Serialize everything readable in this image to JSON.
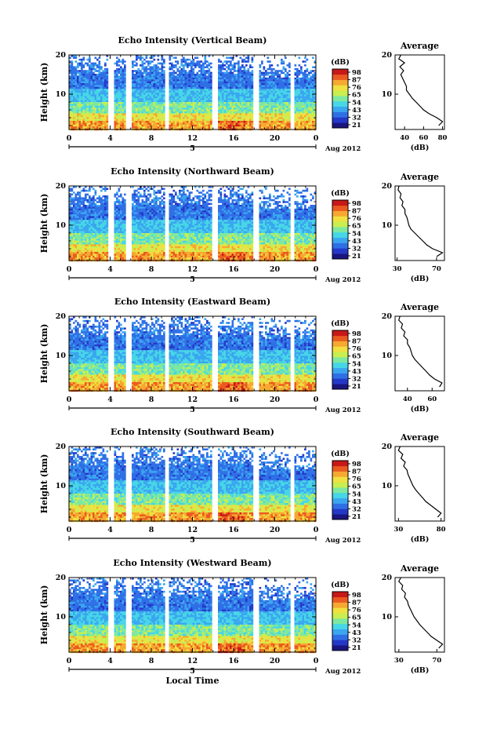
{
  "chart_data": [
    {
      "type": "heatmap",
      "title": "Echo Intensity (Vertical Beam)",
      "ylabel": "Height (km)",
      "yticks": [
        "20",
        "10"
      ],
      "xticks": [
        "0",
        "4",
        "8",
        "12",
        "16",
        "20",
        "0"
      ],
      "date_mark": "5",
      "date_label": "Aug 2012",
      "ylim": [
        1,
        20
      ],
      "xlim": [
        0,
        24
      ],
      "gaps": [
        [
          3.8,
          4.3
        ],
        [
          5.5,
          6.0
        ],
        [
          9.3,
          9.7
        ],
        [
          13.9,
          14.4
        ],
        [
          17.9,
          18.4
        ],
        [
          21.4,
          21.9
        ]
      ],
      "colorbar": {
        "unit": "(dB)",
        "ticks": [
          "98",
          "87",
          "76",
          "65",
          "54",
          "43",
          "32",
          "21"
        ]
      },
      "profile": {
        "title": "Average",
        "xlabel": "(dB)",
        "xticks": [
          "40",
          "60",
          "80"
        ],
        "xlim": [
          30,
          82
        ],
        "yticks": [
          "20",
          "10"
        ],
        "heights": [
          20,
          19,
          18,
          17,
          16,
          15,
          14,
          13,
          12,
          11,
          10,
          9,
          8,
          7,
          6,
          5,
          4,
          3,
          2
        ],
        "values": [
          36,
          34,
          40,
          35,
          39,
          36,
          38,
          40,
          42,
          42,
          45,
          48,
          52,
          56,
          60,
          66,
          74,
          80,
          76
        ]
      },
      "legend_label": ""
    },
    {
      "type": "heatmap",
      "title": "Echo Intensity (Northward Beam)",
      "ylabel": "Height (km)",
      "yticks": [
        "20",
        "10"
      ],
      "xticks": [
        "0",
        "4",
        "8",
        "12",
        "16",
        "20",
        "0"
      ],
      "date_mark": "5",
      "date_label": "Aug 2012",
      "ylim": [
        1,
        20
      ],
      "xlim": [
        0,
        24
      ],
      "gaps": [
        [
          3.8,
          4.3
        ],
        [
          5.5,
          6.0
        ],
        [
          9.3,
          9.7
        ],
        [
          13.9,
          14.4
        ],
        [
          17.9,
          18.4
        ],
        [
          21.4,
          21.9
        ]
      ],
      "colorbar": {
        "unit": "(dB)",
        "ticks": [
          "98",
          "87",
          "76",
          "65",
          "54",
          "43",
          "32",
          "21"
        ]
      },
      "profile": {
        "title": "Average",
        "xlabel": "(dB)",
        "xticks": [
          "30",
          "70"
        ],
        "xlim": [
          28,
          78
        ],
        "yticks": [
          "20",
          "10"
        ],
        "heights": [
          20,
          19,
          18,
          17,
          16,
          15,
          14,
          13,
          12,
          11,
          10,
          9,
          8,
          7,
          6,
          5,
          4,
          3,
          2
        ],
        "values": [
          32,
          31,
          34,
          33,
          36,
          35,
          38,
          38,
          40,
          41,
          42,
          44,
          48,
          52,
          56,
          60,
          66,
          76,
          70
        ]
      }
    },
    {
      "type": "heatmap",
      "title": "Echo Intensity (Eastward Beam)",
      "ylabel": "Height (km)",
      "yticks": [
        "20",
        "10"
      ],
      "xticks": [
        "0",
        "4",
        "8",
        "12",
        "16",
        "20",
        "0"
      ],
      "date_mark": "5",
      "date_label": "Aug 2012",
      "ylim": [
        1,
        20
      ],
      "xlim": [
        0,
        24
      ],
      "gaps": [
        [
          3.8,
          4.3
        ],
        [
          5.5,
          6.0
        ],
        [
          9.3,
          9.7
        ],
        [
          13.9,
          14.4
        ],
        [
          17.9,
          18.4
        ],
        [
          21.4,
          21.9
        ]
      ],
      "colorbar": {
        "unit": "(dB)",
        "ticks": [
          "98",
          "87",
          "76",
          "65",
          "54",
          "43",
          "32",
          "21"
        ]
      },
      "profile": {
        "title": "Average",
        "xlabel": "(dB)",
        "xticks": [
          "40",
          "60"
        ],
        "xlim": [
          30,
          70
        ],
        "yticks": [
          "20",
          "10"
        ],
        "heights": [
          20,
          19,
          18,
          17,
          16,
          15,
          14,
          13,
          12,
          11,
          10,
          9,
          8,
          7,
          6,
          5,
          4,
          3,
          2
        ],
        "values": [
          34,
          33,
          36,
          35,
          38,
          37,
          40,
          40,
          42,
          43,
          44,
          46,
          49,
          52,
          55,
          58,
          62,
          68,
          66
        ]
      }
    },
    {
      "type": "heatmap",
      "title": "Echo Intensity (Southward Beam)",
      "ylabel": "Height (km)",
      "yticks": [
        "20",
        "10"
      ],
      "xticks": [
        "0",
        "4",
        "8",
        "12",
        "16",
        "20",
        "0"
      ],
      "date_mark": "5",
      "date_label": "Aug 2012",
      "ylim": [
        1,
        20
      ],
      "xlim": [
        0,
        24
      ],
      "gaps": [
        [
          3.8,
          4.3
        ],
        [
          5.5,
          6.0
        ],
        [
          9.3,
          9.7
        ],
        [
          13.9,
          14.4
        ],
        [
          17.9,
          18.4
        ],
        [
          21.4,
          21.9
        ]
      ],
      "colorbar": {
        "unit": "(dB)",
        "ticks": [
          "98",
          "87",
          "76",
          "65",
          "54",
          "43",
          "32",
          "21"
        ]
      },
      "profile": {
        "title": "Average",
        "xlabel": "(dB)",
        "xticks": [
          "30",
          "80"
        ],
        "xlim": [
          26,
          84
        ],
        "yticks": [
          "20",
          "10"
        ],
        "heights": [
          20,
          19,
          18,
          17,
          16,
          15,
          14,
          13,
          12,
          11,
          10,
          9,
          8,
          7,
          6,
          5,
          4,
          3,
          2
        ],
        "values": [
          32,
          30,
          35,
          33,
          38,
          36,
          40,
          41,
          43,
          45,
          47,
          50,
          54,
          58,
          62,
          68,
          74,
          80,
          76
        ]
      }
    },
    {
      "type": "heatmap",
      "title": "Echo Intensity (Westward Beam)",
      "ylabel": "Height (km)",
      "yticks": [
        "20",
        "10"
      ],
      "xticks": [
        "0",
        "4",
        "8",
        "12",
        "16",
        "20",
        "0"
      ],
      "date_mark": "5",
      "date_label": "Aug 2012",
      "xlabel": "Local Time",
      "ylim": [
        1,
        20
      ],
      "xlim": [
        0,
        24
      ],
      "gaps": [
        [
          3.8,
          4.3
        ],
        [
          5.5,
          6.0
        ],
        [
          9.3,
          9.7
        ],
        [
          13.9,
          14.4
        ],
        [
          17.9,
          18.4
        ],
        [
          21.4,
          21.9
        ]
      ],
      "colorbar": {
        "unit": "(dB)",
        "ticks": [
          "98",
          "87",
          "76",
          "65",
          "54",
          "43",
          "32",
          "21"
        ]
      },
      "profile": {
        "title": "Average",
        "xlabel": "(dB)",
        "xticks": [
          "30",
          "70"
        ],
        "xlim": [
          26,
          78
        ],
        "yticks": [
          "20",
          "10"
        ],
        "heights": [
          20,
          19,
          18,
          17,
          16,
          15,
          14,
          13,
          12,
          11,
          10,
          9,
          8,
          7,
          6,
          5,
          4,
          3,
          2
        ],
        "values": [
          32,
          30,
          34,
          33,
          37,
          36,
          39,
          40,
          42,
          44,
          46,
          49,
          52,
          56,
          60,
          64,
          70,
          76,
          72
        ]
      }
    }
  ],
  "colormap": [
    "#1a1580",
    "#2438c8",
    "#2f6fe6",
    "#3aa6f0",
    "#46d6e6",
    "#7ee8a0",
    "#c8ee50",
    "#f0e040",
    "#f6a830",
    "#ea5a20",
    "#c81818"
  ]
}
